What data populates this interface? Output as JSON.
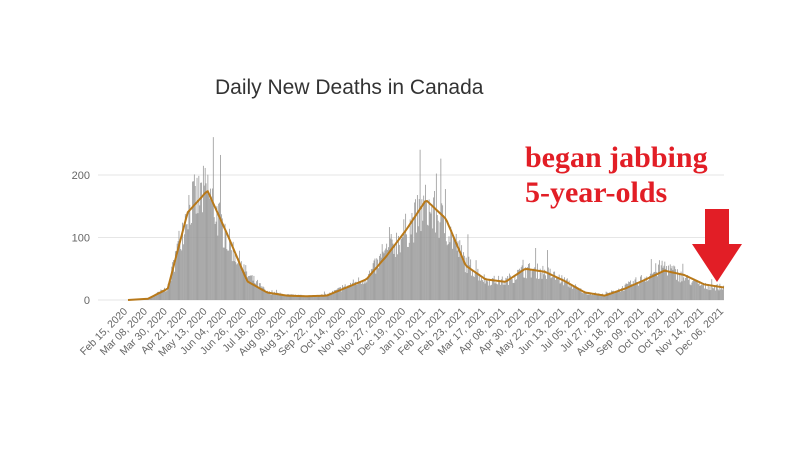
{
  "chart_data": {
    "type": "bar",
    "title": "Daily New Deaths in Canada",
    "xlabel": "",
    "ylabel": "",
    "ylim": [
      0,
      250
    ],
    "yticks": [
      0,
      100,
      200
    ],
    "grid": true,
    "legend": "none",
    "xtick_labels": [
      "Feb 15, 2020",
      "Mar 08, 2020",
      "Mar 30, 2020",
      "Apr 21, 2020",
      "May 13, 2020",
      "Jun 04, 2020",
      "Jun 26, 2020",
      "Jul 18, 2020",
      "Aug 09, 2020",
      "Aug 31, 2020",
      "Sep 22, 2020",
      "Oct 14, 2020",
      "Nov 05, 2020",
      "Nov 27, 2020",
      "Dec 19, 2020",
      "Jan 10, 2021",
      "Feb 01, 2021",
      "Feb 23, 2021",
      "Mar 17, 2021",
      "Apr 08, 2021",
      "Apr 30, 2021",
      "May 22, 2021",
      "Jun 13, 2021",
      "Jul 05, 2021",
      "Jul 27, 2021",
      "Aug 18, 2021",
      "Sep 09, 2021",
      "Oct 01, 2021",
      "Oct 23, 2021",
      "Nov 14, 2021",
      "Dec 06, 2021"
    ],
    "series": [
      {
        "kind": "bars",
        "values_at_ticks": [
          0,
          2,
          20,
          150,
          175,
          95,
          40,
          12,
          8,
          6,
          8,
          22,
          35,
          75,
          110,
          150,
          120,
          60,
          32,
          30,
          48,
          45,
          30,
          12,
          8,
          20,
          35,
          55,
          35,
          22,
          20
        ]
      },
      {
        "kind": "line",
        "values_at_ticks": [
          0,
          2,
          18,
          140,
          175,
          105,
          30,
          12,
          7,
          6,
          7,
          20,
          33,
          70,
          112,
          160,
          130,
          55,
          33,
          29,
          50,
          45,
          30,
          12,
          7,
          18,
          32,
          47,
          40,
          25,
          20
        ]
      }
    ],
    "colors": {
      "bars": "#999999",
      "line": "#b8791a",
      "grid": "#e6e6e6",
      "ticks": "#666666",
      "title": "#333333"
    }
  },
  "annotation": {
    "line1": "began jabbing",
    "line2": "5-year-olds",
    "color": "#e21e26",
    "arrow_icon": "down-arrow-icon"
  }
}
